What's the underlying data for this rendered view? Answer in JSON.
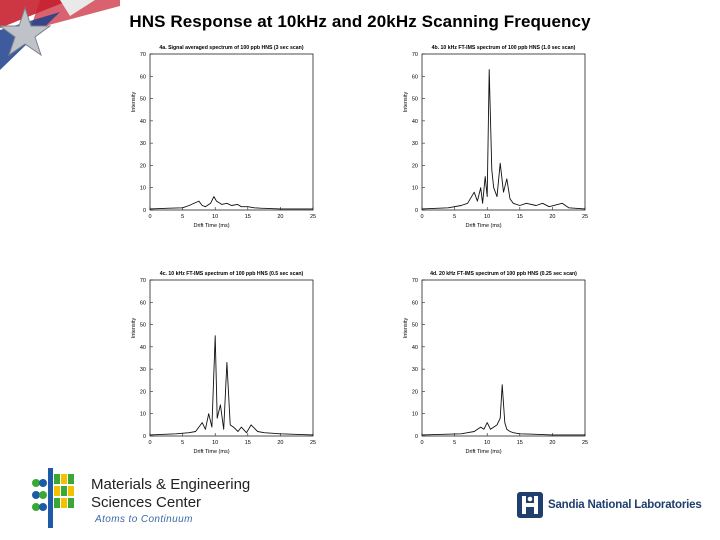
{
  "slide": {
    "title": "HNS Response at 10kHz and 20kHz Scanning Frequency"
  },
  "footer": {
    "center_line1": "Materials & Engineering",
    "center_line2": "Sciences Center",
    "tagline": "Atoms to Continuum",
    "lab_name": "Sandia National Laboratories"
  },
  "colors": {
    "title": "#000000",
    "tagline": "#3a6aa8",
    "sandia_blue": "#1f3f6e",
    "logo_green": "#39a935",
    "logo_blue": "#1e5aa8",
    "logo_yellow": "#f2c200",
    "flag_red": "#c8202f",
    "flag_blue": "#1c3f8c"
  },
  "icons": {
    "flag": "flag-decoration-icon",
    "mesc": "mesc-logo-icon",
    "sandia": "sandia-thunderbird-icon"
  },
  "chart_data": [
    {
      "type": "line",
      "title": "4a. Signal averaged spectrum of 100 ppb HNS (3 sec scan)",
      "xlabel": "Drift Time (ms)",
      "ylabel": "Intensity",
      "xlim": [
        0,
        25
      ],
      "ylim": [
        0,
        70
      ],
      "xticks": [
        0,
        5,
        10,
        15,
        20,
        25
      ],
      "yticks": [
        0,
        10,
        20,
        30,
        40,
        50,
        60,
        70
      ],
      "grid": false,
      "series": [
        {
          "x": [
            0,
            3,
            5,
            6,
            7.5,
            8,
            8.5,
            9.3,
            9.8,
            10.2,
            11,
            11.8,
            12.5,
            13.4,
            14,
            15,
            16,
            17,
            20,
            25
          ],
          "y": [
            0.5,
            0.8,
            1,
            2,
            4,
            2,
            1.5,
            3,
            6,
            4,
            2.5,
            3,
            2,
            2.5,
            1.5,
            1.5,
            1,
            0.8,
            0.5,
            0.5
          ]
        }
      ]
    },
    {
      "type": "line",
      "title": "4b. 10 kHz FT-IMS spectrum of 100 ppb HNS (1.0 sec scan)",
      "xlabel": "Drift Time (ms)",
      "ylabel": "Intensity",
      "xlim": [
        0,
        25
      ],
      "ylim": [
        0,
        70
      ],
      "xticks": [
        0,
        5,
        10,
        15,
        20,
        25
      ],
      "yticks": [
        0,
        10,
        20,
        30,
        40,
        50,
        60,
        70
      ],
      "grid": false,
      "series": [
        {
          "x": [
            0,
            4,
            6,
            7,
            8,
            8.5,
            9,
            9.3,
            9.7,
            10,
            10.3,
            10.7,
            11,
            11.5,
            12,
            12.5,
            13,
            13.5,
            14,
            15,
            16,
            17.5,
            18.5,
            19.5,
            21.5,
            22.5,
            25
          ],
          "y": [
            0.5,
            1,
            2,
            3,
            8,
            4,
            10,
            3,
            15,
            6,
            63,
            18,
            10,
            6,
            21,
            8,
            14,
            5,
            3,
            2,
            3,
            2,
            3,
            1.5,
            3,
            1,
            0.5
          ]
        }
      ]
    },
    {
      "type": "line",
      "title": "4c. 10 kHz FT-IMS spectrum of 100 ppb HNS (0.5 sec scan)",
      "xlabel": "Drift Time (ms)",
      "ylabel": "Intensity",
      "xlim": [
        0,
        25
      ],
      "ylim": [
        0,
        70
      ],
      "xticks": [
        0,
        5,
        10,
        15,
        20,
        25
      ],
      "yticks": [
        0,
        10,
        20,
        30,
        40,
        50,
        60,
        70
      ],
      "grid": false,
      "series": [
        {
          "x": [
            0,
            4,
            6,
            7,
            8,
            8.5,
            9,
            9.5,
            10,
            10.3,
            10.8,
            11.3,
            11.8,
            12.3,
            12.8,
            13.5,
            14,
            14.8,
            15.5,
            16.5,
            17.5,
            20,
            25
          ],
          "y": [
            0.5,
            1,
            1.5,
            2,
            6,
            3,
            10,
            4,
            45,
            8,
            14,
            3,
            33,
            5,
            4,
            2,
            4,
            1.5,
            5,
            2,
            1.5,
            1,
            0.5
          ]
        }
      ]
    },
    {
      "type": "line",
      "title": "4d. 20 kHz FT-IMS spectrum of 100 ppb HNS (0.25 sec scan)",
      "xlabel": "Drift Time (ms)",
      "ylabel": "Intensity",
      "xlim": [
        0,
        25
      ],
      "ylim": [
        0,
        70
      ],
      "xticks": [
        0,
        5,
        10,
        15,
        20,
        25
      ],
      "yticks": [
        0,
        10,
        20,
        30,
        40,
        50,
        60,
        70
      ],
      "grid": false,
      "series": [
        {
          "x": [
            0,
            4,
            6,
            7,
            8,
            9,
            9.5,
            10,
            10.5,
            11,
            11.5,
            12,
            12.3,
            12.7,
            13,
            13.5,
            14,
            15,
            17,
            20,
            25
          ],
          "y": [
            0.5,
            0.8,
            1,
            1.5,
            2,
            4,
            3,
            6,
            3,
            4,
            5,
            8,
            23,
            6,
            3,
            2,
            1.5,
            1,
            0.8,
            0.5,
            0.5
          ]
        }
      ]
    }
  ]
}
